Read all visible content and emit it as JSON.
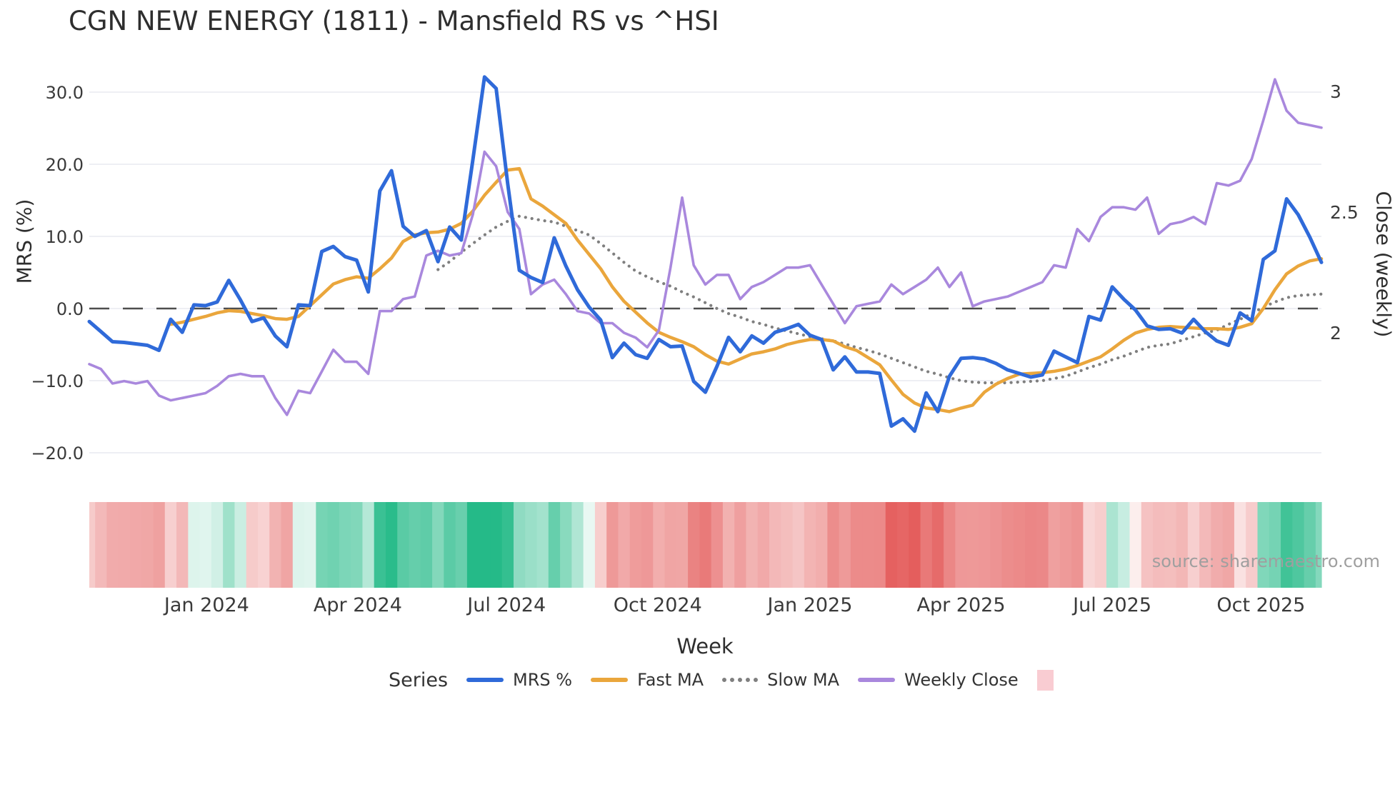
{
  "title": "CGN NEW ENERGY (1811) - Mansfield RS vs ^HSI",
  "source": "source: sharemaestro.com",
  "legend": {
    "title": "Series"
  },
  "chart_data": {
    "type": "line",
    "title": "CGN NEW ENERGY (1811) - Mansfield RS vs ^HSI",
    "x_axis": {
      "label": "Week",
      "unit": "week-index",
      "n_points": 107,
      "ticks": [
        {
          "label": "Jan 2024",
          "week": 10.1
        },
        {
          "label": "Apr 2024",
          "week": 23.1
        },
        {
          "label": "Jul 2024",
          "week": 35.9
        },
        {
          "label": "Oct 2024",
          "week": 48.9
        },
        {
          "label": "Jan 2025",
          "week": 62.0
        },
        {
          "label": "Apr 2025",
          "week": 75.0
        },
        {
          "label": "Jul 2025",
          "week": 88.0
        },
        {
          "label": "Oct 2025",
          "week": 100.8
        }
      ]
    },
    "y_left": {
      "label": "MRS (%)",
      "range": [
        -25,
        35
      ],
      "ticks": [
        {
          "label": "30.0",
          "value": 30
        },
        {
          "label": "20.0",
          "value": 20
        },
        {
          "label": "10.0",
          "value": 10
        },
        {
          "label": "0.0",
          "value": 0
        },
        {
          "label": "−10.0",
          "value": -10
        },
        {
          "label": "−20.0",
          "value": -20
        }
      ],
      "zero_line": true
    },
    "y_right": {
      "label": "Close (weekly)",
      "range": [
        1.55,
        3.15
      ],
      "ticks": [
        {
          "label": "3",
          "value": 3
        },
        {
          "label": "2.5",
          "value": 2.5
        },
        {
          "label": "2",
          "value": 2
        }
      ]
    },
    "grid": "horizontal",
    "legend_position": "bottom",
    "series": [
      {
        "name": "MRS %",
        "axis": "left",
        "color": "#2f6ad9",
        "width": 5,
        "style": "solid",
        "z": 4,
        "values": [
          -1.8,
          -3.2,
          -4.6,
          -4.7,
          -4.9,
          -5.1,
          -5.8,
          -1.5,
          -3.3,
          0.5,
          0.4,
          0.9,
          3.9,
          1.2,
          -1.8,
          -1.3,
          -3.8,
          -5.3,
          0.5,
          0.4,
          7.9,
          8.6,
          7.2,
          6.7,
          2.3,
          16.3,
          19.1,
          11.4,
          10.0,
          10.8,
          6.5,
          11.3,
          9.5,
          20.6,
          32.1,
          30.5,
          17.3,
          5.3,
          4.3,
          3.6,
          9.8,
          5.9,
          2.6,
          0.2,
          -1.6,
          -6.8,
          -4.8,
          -6.4,
          -6.9,
          -4.3,
          -5.3,
          -5.2,
          -10.1,
          -11.6,
          -8.0,
          -4.0,
          -6.0,
          -3.8,
          -4.8,
          -3.3,
          -2.8,
          -2.2,
          -3.7,
          -4.3,
          -8.5,
          -6.7,
          -8.8,
          -8.8,
          -9.0,
          -16.3,
          -15.3,
          -17.0,
          -11.7,
          -14.3,
          -9.4,
          -6.9,
          -6.8,
          -7.0,
          -7.6,
          -8.5,
          -9.0,
          -9.5,
          -9.2,
          -5.9,
          -6.7,
          -7.5,
          -1.1,
          -1.6,
          3.0,
          1.3,
          -0.2,
          -2.4,
          -2.9,
          -2.8,
          -3.4,
          -1.5,
          -3.2,
          -4.5,
          -5.1,
          -0.6,
          -1.7,
          6.8,
          8.0,
          15.2,
          13.0,
          9.9,
          6.4
        ]
      },
      {
        "name": "Fast MA",
        "axis": "left",
        "color": "#eaa63c",
        "width": 4.5,
        "style": "solid",
        "z": 2,
        "values": [
          null,
          null,
          null,
          null,
          null,
          null,
          null,
          -2.2,
          -1.9,
          -1.5,
          -1.1,
          -0.6,
          -0.3,
          -0.4,
          -0.7,
          -1.0,
          -1.4,
          -1.5,
          -1.1,
          0.4,
          1.9,
          3.4,
          4.0,
          4.4,
          4.2,
          5.5,
          7.0,
          9.3,
          10.2,
          10.5,
          10.6,
          11.0,
          11.8,
          13.5,
          15.7,
          17.5,
          19.2,
          19.4,
          15.2,
          14.2,
          13.0,
          11.8,
          9.5,
          7.5,
          5.5,
          3.0,
          1.0,
          -0.5,
          -2.0,
          -3.3,
          -4.0,
          -4.6,
          -5.3,
          -6.4,
          -7.3,
          -7.7,
          -7.0,
          -6.3,
          -6.0,
          -5.6,
          -5.0,
          -4.6,
          -4.3,
          -4.3,
          -4.5,
          -5.3,
          -5.8,
          -6.8,
          -7.8,
          -9.9,
          -11.9,
          -13.1,
          -13.8,
          -14.0,
          -14.3,
          -13.8,
          -13.4,
          -11.6,
          -10.5,
          -9.7,
          -9.1,
          -9.0,
          -8.9,
          -8.7,
          -8.4,
          -7.9,
          -7.3,
          -6.7,
          -5.6,
          -4.4,
          -3.4,
          -2.9,
          -2.6,
          -2.5,
          -2.6,
          -2.7,
          -2.8,
          -2.8,
          -2.9,
          -2.6,
          -2.1,
          0.0,
          2.6,
          4.8,
          5.9,
          6.6,
          6.9
        ]
      },
      {
        "name": "Slow MA",
        "axis": "left",
        "color": "#7f7f7f",
        "width": 4.2,
        "style": "dotted",
        "z": 1,
        "values": [
          null,
          null,
          null,
          null,
          null,
          null,
          null,
          null,
          null,
          null,
          null,
          null,
          null,
          null,
          null,
          null,
          null,
          null,
          null,
          null,
          null,
          null,
          null,
          null,
          null,
          null,
          null,
          null,
          null,
          null,
          5.4,
          6.5,
          7.8,
          9.0,
          10.2,
          11.3,
          12.1,
          12.8,
          12.5,
          12.2,
          12.0,
          11.4,
          10.8,
          10.2,
          9.0,
          7.7,
          6.4,
          5.2,
          4.4,
          3.7,
          3.1,
          2.3,
          1.6,
          0.8,
          0.0,
          -0.7,
          -1.2,
          -1.8,
          -2.2,
          -2.7,
          -3.1,
          -3.5,
          -3.9,
          -4.2,
          -4.5,
          -4.9,
          -5.4,
          -5.8,
          -6.3,
          -6.9,
          -7.5,
          -8.1,
          -8.7,
          -9.1,
          -9.6,
          -10.0,
          -10.2,
          -10.3,
          -10.3,
          -10.3,
          -10.2,
          -10.1,
          -10.0,
          -9.7,
          -9.4,
          -8.8,
          -8.2,
          -7.7,
          -7.1,
          -6.6,
          -6.0,
          -5.4,
          -5.1,
          -4.9,
          -4.4,
          -3.9,
          -3.4,
          -3.0,
          -2.2,
          -1.5,
          -0.7,
          0.2,
          0.9,
          1.5,
          1.8,
          1.9,
          2.0
        ]
      },
      {
        "name": "Weekly Close",
        "axis": "right",
        "color": "#a988dd",
        "width": 3.6,
        "style": "solid",
        "z": 3,
        "values": [
          1.87,
          1.85,
          1.79,
          1.8,
          1.79,
          1.8,
          1.74,
          1.72,
          1.73,
          1.74,
          1.75,
          1.78,
          1.82,
          1.83,
          1.82,
          1.82,
          1.73,
          1.66,
          1.76,
          1.75,
          1.84,
          1.93,
          1.88,
          1.88,
          1.83,
          2.09,
          2.09,
          2.14,
          2.15,
          2.32,
          2.34,
          2.32,
          2.33,
          2.49,
          2.75,
          2.69,
          2.5,
          2.43,
          2.16,
          2.2,
          2.22,
          2.16,
          2.09,
          2.08,
          2.04,
          2.04,
          2.0,
          1.98,
          1.94,
          2.01,
          2.27,
          2.56,
          2.28,
          2.2,
          2.24,
          2.24,
          2.14,
          2.19,
          2.21,
          2.24,
          2.27,
          2.27,
          2.28,
          2.2,
          2.12,
          2.04,
          2.11,
          2.12,
          2.13,
          2.2,
          2.16,
          2.19,
          2.22,
          2.27,
          2.19,
          2.25,
          2.11,
          2.13,
          2.14,
          2.15,
          2.17,
          2.19,
          2.21,
          2.28,
          2.27,
          2.43,
          2.38,
          2.48,
          2.52,
          2.52,
          2.51,
          2.56,
          2.41,
          2.45,
          2.46,
          2.48,
          2.45,
          2.62,
          2.61,
          2.63,
          2.72,
          2.88,
          3.05,
          2.92,
          2.87,
          2.86,
          2.85
        ]
      }
    ],
    "heatmap": {
      "basis": "MRS %",
      "positive_color": "#25ba88",
      "negative_color": "#e2504f",
      "neutral_color": "#ffffff",
      "clamp": 20,
      "scale": "sqrt",
      "legend_swatch_color": "#f9ccd2",
      "legend_label": ""
    },
    "colors": {
      "grid": "#e9eaf0",
      "zero_dash": "#4d4d4d",
      "tick_text": "#3a3a3a",
      "title_text": "#2e2e2e"
    }
  }
}
